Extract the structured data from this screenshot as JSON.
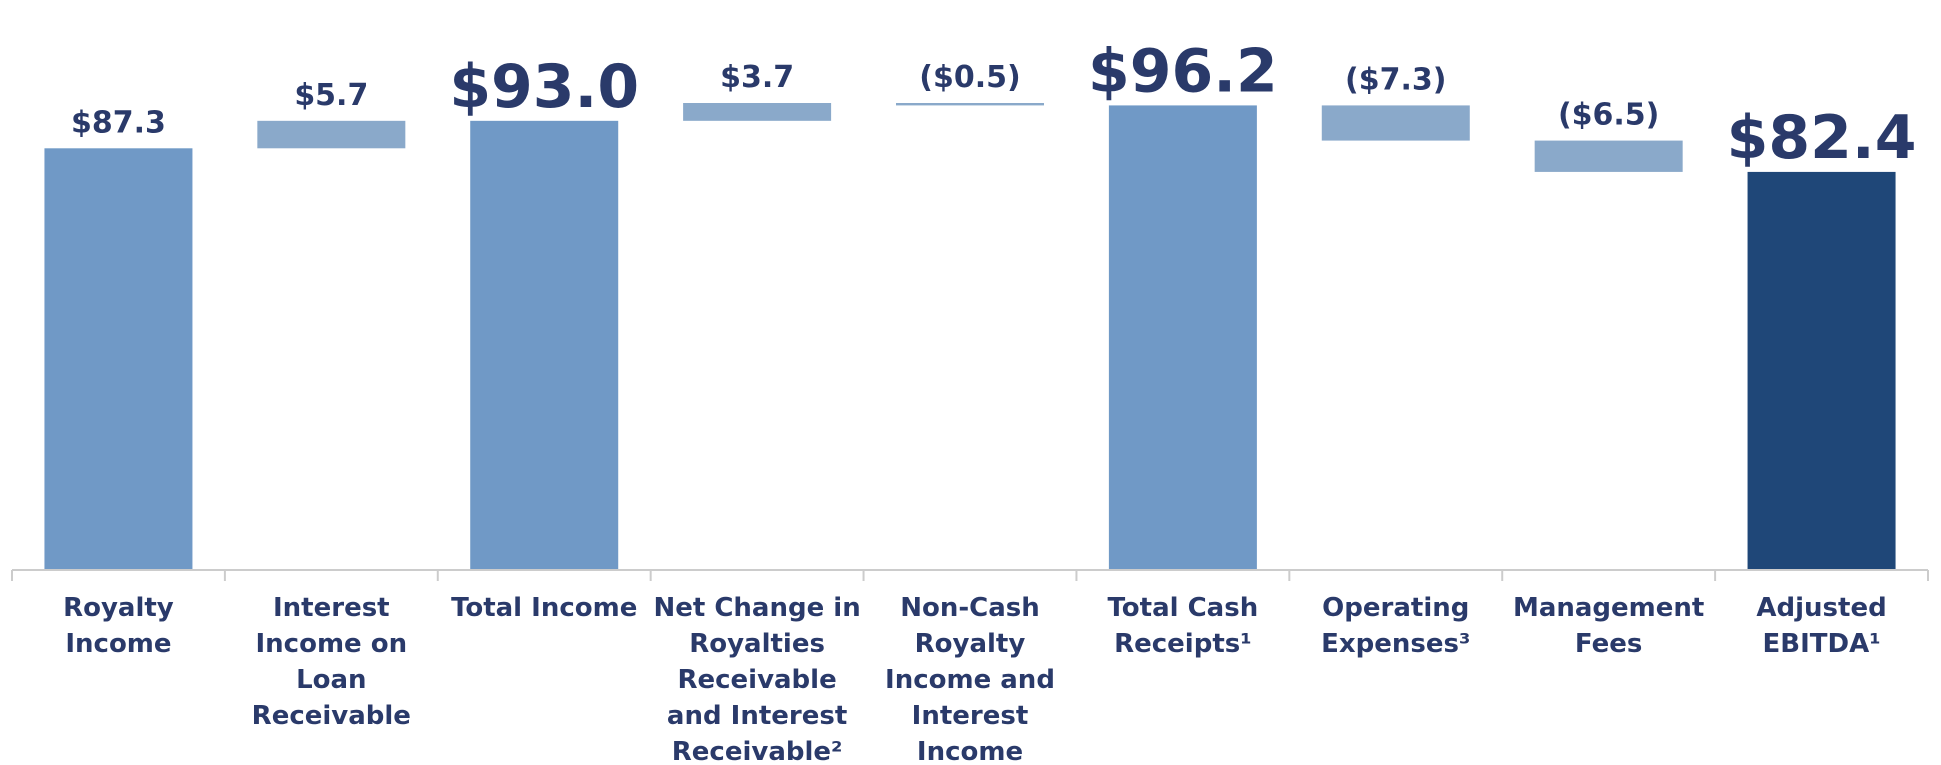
{
  "chart_data": {
    "type": "waterfall",
    "categories": [
      "Royalty Income",
      "Interest Income on Loan Receivable",
      "Total Income",
      "Net Change in Royalties Receivable and Interest Receivable²",
      "Non-Cash Royalty Income and Interest Income",
      "Total Cash Receipts¹",
      "Operating Expenses³",
      "Management Fees",
      "Adjusted EBITDA¹"
    ],
    "values": [
      87.3,
      5.7,
      93.0,
      3.7,
      -0.5,
      96.2,
      -7.3,
      -6.5,
      82.4
    ],
    "value_labels": [
      "$87.3",
      "$5.7",
      "$93.0",
      "$3.7",
      "($0.5)",
      "$96.2",
      "($7.3)",
      "($6.5)",
      "$82.4"
    ],
    "kinds": [
      "start",
      "delta",
      "total",
      "delta",
      "delta",
      "total",
      "delta",
      "delta",
      "final"
    ],
    "emphasis": [
      false,
      false,
      true,
      false,
      false,
      true,
      false,
      false,
      true
    ],
    "colors": {
      "start": "#7099c6",
      "total": "#7099c6",
      "delta": "#8aa9ca",
      "final": "#1f4778"
    }
  }
}
